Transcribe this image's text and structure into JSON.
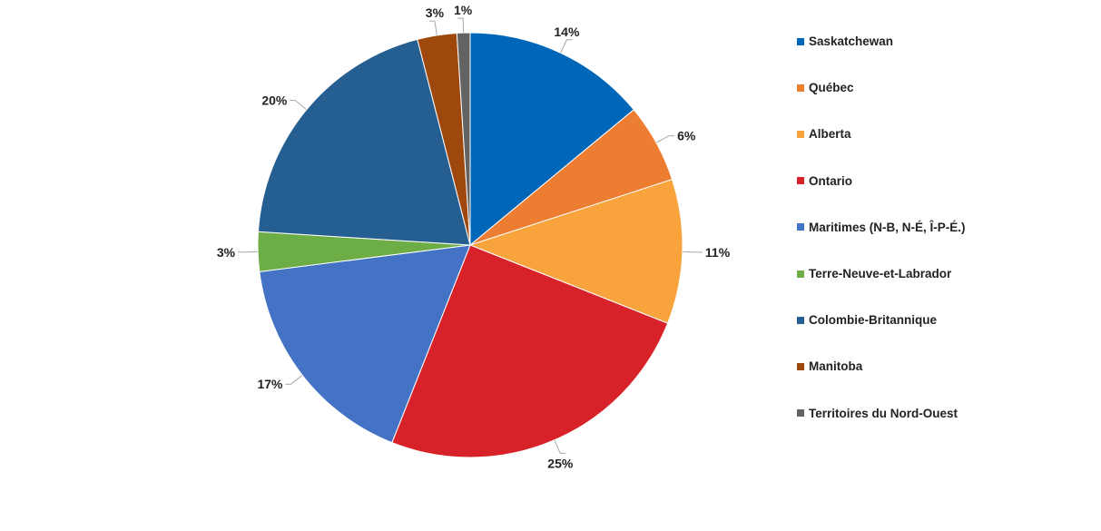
{
  "chart_data": {
    "type": "pie",
    "title": "",
    "legend_position": "right",
    "slices": [
      {
        "label": "Saskatchewan",
        "value": 14,
        "display": "14%",
        "color": "#0066B8"
      },
      {
        "label": "Québec",
        "value": 6,
        "display": "6%",
        "color": "#ED7D31"
      },
      {
        "label": "Alberta",
        "value": 11,
        "display": "11%",
        "color": "#F9A33D"
      },
      {
        "label": "Ontario",
        "value": 25,
        "display": "25%",
        "color": "#D82229"
      },
      {
        "label": "Maritimes (N-B, N-É, Î-P-É.)",
        "value": 17,
        "display": "17%",
        "color": "#4472C4"
      },
      {
        "label": "Terre-Neuve-et-Labrador",
        "value": 3,
        "display": "3%",
        "color": "#6DAD46"
      },
      {
        "label": "Colombie-Britannique",
        "value": 20,
        "display": "20%",
        "color": "#255E91"
      },
      {
        "label": "Manitoba",
        "value": 3,
        "display": "3%",
        "color": "#9E480E"
      },
      {
        "label": "Territoires du Nord-Ouest",
        "value": 1,
        "display": "1%",
        "color": "#636363"
      }
    ]
  }
}
